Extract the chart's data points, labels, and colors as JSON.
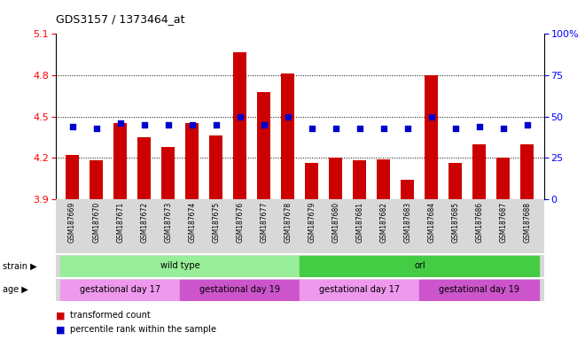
{
  "title": "GDS3157 / 1373464_at",
  "samples": [
    "GSM187669",
    "GSM187670",
    "GSM187671",
    "GSM187672",
    "GSM187673",
    "GSM187674",
    "GSM187675",
    "GSM187676",
    "GSM187677",
    "GSM187678",
    "GSM187679",
    "GSM187680",
    "GSM187681",
    "GSM187682",
    "GSM187683",
    "GSM187684",
    "GSM187685",
    "GSM187686",
    "GSM187687",
    "GSM187688"
  ],
  "transformed_count": [
    4.22,
    4.18,
    4.45,
    4.35,
    4.28,
    4.45,
    4.36,
    4.97,
    4.68,
    4.81,
    4.16,
    4.2,
    4.18,
    4.19,
    4.04,
    4.8,
    4.16,
    4.3,
    4.2,
    4.3
  ],
  "percentile_rank": [
    44,
    43,
    46,
    45,
    45,
    45,
    45,
    50,
    45,
    50,
    43,
    43,
    43,
    43,
    43,
    50,
    43,
    44,
    43,
    45
  ],
  "ylim_left": [
    3.9,
    5.1
  ],
  "ylim_right": [
    0,
    100
  ],
  "yticks_left": [
    3.9,
    4.2,
    4.5,
    4.8,
    5.1
  ],
  "yticks_right": [
    0,
    25,
    50,
    75,
    100
  ],
  "ytick_labels_right": [
    "0",
    "25",
    "50",
    "75",
    "100%"
  ],
  "grid_lines": [
    4.2,
    4.5,
    4.8
  ],
  "bar_color": "#cc0000",
  "dot_color": "#0000cc",
  "bar_width": 0.55,
  "strain_groups": [
    {
      "label": "wild type",
      "start": 0,
      "end": 9,
      "color": "#99ee99"
    },
    {
      "label": "orl",
      "start": 10,
      "end": 19,
      "color": "#44cc44"
    }
  ],
  "age_groups": [
    {
      "label": "gestational day 17",
      "start": 0,
      "end": 4,
      "color": "#ee99ee"
    },
    {
      "label": "gestational day 19",
      "start": 5,
      "end": 9,
      "color": "#cc55cc"
    },
    {
      "label": "gestational day 17",
      "start": 10,
      "end": 14,
      "color": "#ee99ee"
    },
    {
      "label": "gestational day 19",
      "start": 15,
      "end": 19,
      "color": "#cc55cc"
    }
  ],
  "legend_items": [
    {
      "label": "transformed count",
      "color": "#cc0000"
    },
    {
      "label": "percentile rank within the sample",
      "color": "#0000cc"
    }
  ]
}
